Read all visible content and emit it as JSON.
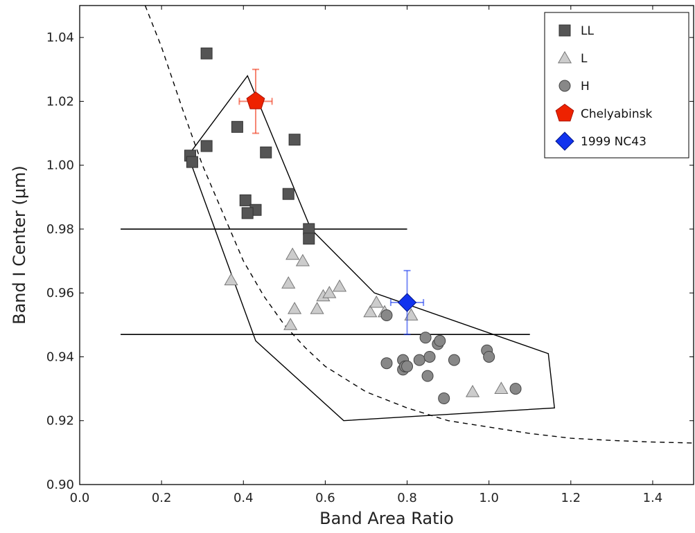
{
  "chart_data": {
    "type": "scatter",
    "xlabel": "Band Area Ratio",
    "ylabel": "Band I Center (μm)",
    "xlim": [
      0.0,
      1.5
    ],
    "ylim": [
      0.9,
      1.05
    ],
    "xticks": [
      "0.0",
      "0.2",
      "0.4",
      "0.6",
      "0.8",
      "1.0",
      "1.2",
      "1.4"
    ],
    "xtick_values": [
      0.0,
      0.2,
      0.4,
      0.6,
      0.8,
      1.0,
      1.2,
      1.4
    ],
    "yticks": [
      "0.90",
      "0.92",
      "0.94",
      "0.96",
      "0.98",
      "1.00",
      "1.02",
      "1.04"
    ],
    "ytick_values": [
      0.9,
      0.92,
      0.94,
      0.96,
      0.98,
      1.0,
      1.02,
      1.04
    ],
    "grid": false,
    "legend_position": "top-right",
    "series": [
      {
        "name": "LL",
        "marker": "square",
        "color": "#555555",
        "points": [
          [
            0.31,
            1.035
          ],
          [
            0.31,
            1.006
          ],
          [
            0.27,
            1.003
          ],
          [
            0.275,
            1.001
          ],
          [
            0.385,
            1.012
          ],
          [
            0.525,
            1.008
          ],
          [
            0.455,
            1.004
          ],
          [
            0.51,
            0.991
          ],
          [
            0.405,
            0.989
          ],
          [
            0.43,
            0.986
          ],
          [
            0.41,
            0.985
          ],
          [
            0.56,
            0.98
          ],
          [
            0.56,
            0.977
          ]
        ]
      },
      {
        "name": "L",
        "marker": "triangle",
        "color": "#cccccc",
        "points": [
          [
            0.37,
            0.964
          ],
          [
            0.52,
            0.972
          ],
          [
            0.545,
            0.97
          ],
          [
            0.51,
            0.963
          ],
          [
            0.525,
            0.955
          ],
          [
            0.515,
            0.95
          ],
          [
            0.58,
            0.955
          ],
          [
            0.595,
            0.959
          ],
          [
            0.61,
            0.96
          ],
          [
            0.635,
            0.962
          ],
          [
            0.71,
            0.954
          ],
          [
            0.725,
            0.957
          ],
          [
            0.745,
            0.954
          ],
          [
            0.81,
            0.953
          ],
          [
            0.96,
            0.929
          ],
          [
            1.03,
            0.93
          ]
        ]
      },
      {
        "name": "H",
        "marker": "circle",
        "color": "#888888",
        "points": [
          [
            0.75,
            0.953
          ],
          [
            0.75,
            0.938
          ],
          [
            0.79,
            0.939
          ],
          [
            0.79,
            0.936
          ],
          [
            0.795,
            0.937
          ],
          [
            0.8,
            0.937
          ],
          [
            0.83,
            0.939
          ],
          [
            0.845,
            0.946
          ],
          [
            0.85,
            0.934
          ],
          [
            0.855,
            0.94
          ],
          [
            0.875,
            0.944
          ],
          [
            0.88,
            0.945
          ],
          [
            0.89,
            0.927
          ],
          [
            0.915,
            0.939
          ],
          [
            0.995,
            0.942
          ],
          [
            1.0,
            0.94
          ],
          [
            1.065,
            0.93
          ]
        ]
      },
      {
        "name": "Chelyabinsk",
        "marker": "pentagon",
        "color": "#ee2200",
        "points": [
          [
            0.43,
            1.02
          ]
        ],
        "xerr": 0.04,
        "yerr": 0.01
      },
      {
        "name": "1999 NC43",
        "marker": "diamond",
        "color": "#1133ee",
        "points": [
          [
            0.8,
            0.957
          ]
        ],
        "xerr": 0.04,
        "yerr": 0.01
      }
    ],
    "region_polygon": [
      [
        0.265,
        1.003
      ],
      [
        0.41,
        1.028
      ],
      [
        0.565,
        0.98
      ],
      [
        0.72,
        0.96
      ],
      [
        1.145,
        0.941
      ],
      [
        1.16,
        0.924
      ],
      [
        0.645,
        0.92
      ],
      [
        0.43,
        0.945
      ]
    ],
    "horizontal_lines": [
      {
        "y": 0.98,
        "x_start": 0.1,
        "x_end": 0.8
      },
      {
        "y": 0.947,
        "x_start": 0.1,
        "x_end": 1.1
      }
    ],
    "dashed_curve": [
      [
        0.16,
        1.05
      ],
      [
        0.2,
        1.037
      ],
      [
        0.25,
        1.018
      ],
      [
        0.3,
        1.0
      ],
      [
        0.35,
        0.985
      ],
      [
        0.4,
        0.97
      ],
      [
        0.45,
        0.959
      ],
      [
        0.5,
        0.95
      ],
      [
        0.55,
        0.943
      ],
      [
        0.6,
        0.937
      ],
      [
        0.7,
        0.929
      ],
      [
        0.8,
        0.924
      ],
      [
        0.9,
        0.92
      ],
      [
        1.0,
        0.918
      ],
      [
        1.1,
        0.916
      ],
      [
        1.2,
        0.9145
      ],
      [
        1.3,
        0.9138
      ],
      [
        1.4,
        0.9133
      ],
      [
        1.5,
        0.913
      ]
    ]
  }
}
